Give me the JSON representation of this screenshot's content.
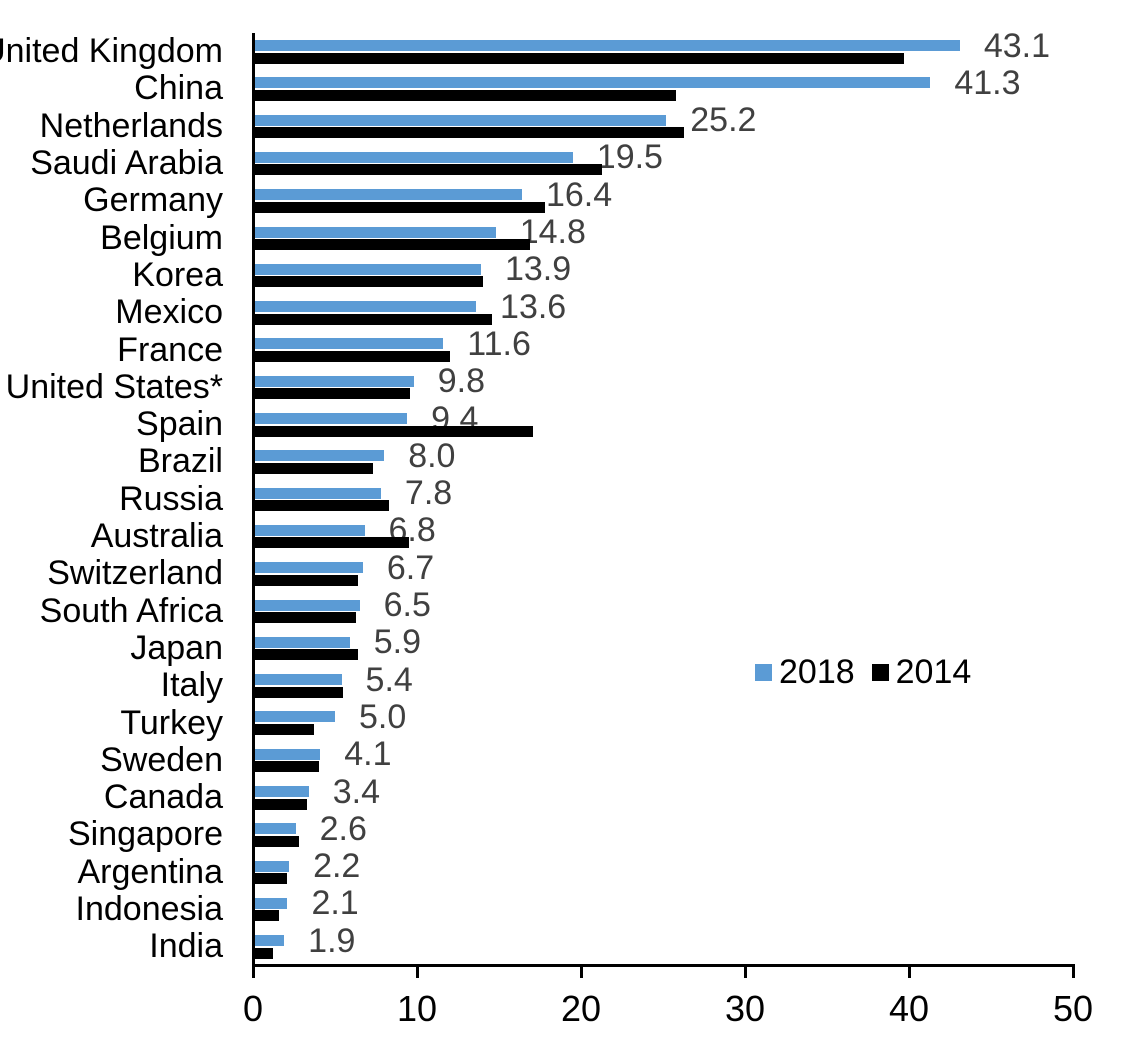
{
  "chart_data": {
    "type": "bar",
    "orientation": "horizontal",
    "title": "",
    "xlabel": "",
    "ylabel": "",
    "xlim": [
      0,
      50
    ],
    "xticks": [
      0,
      10,
      20,
      30,
      40,
      50
    ],
    "grid": false,
    "legend_position": "middle-right",
    "categories": [
      "United Kingdom",
      "China",
      "Netherlands",
      "Saudi Arabia",
      "Germany",
      "Belgium",
      "Korea",
      "Mexico",
      "France",
      "United States*",
      "Spain",
      "Brazil",
      "Russia",
      "Australia",
      "Switzerland",
      "South Africa",
      "Japan",
      "Italy",
      "Turkey",
      "Sweden",
      "Canada",
      "Singapore",
      "Argentina",
      "Indonesia",
      "India"
    ],
    "series": [
      {
        "name": "2018",
        "color": "#5B9BD5",
        "values": [
          43.1,
          41.3,
          25.2,
          19.5,
          16.4,
          14.8,
          13.9,
          13.6,
          11.6,
          9.8,
          9.4,
          8.0,
          7.8,
          6.8,
          6.7,
          6.5,
          5.9,
          5.4,
          5.0,
          4.1,
          3.4,
          2.6,
          2.2,
          2.1,
          1.9
        ]
      },
      {
        "name": "2014",
        "color": "#000000",
        "values": [
          39.7,
          25.8,
          26.3,
          21.3,
          17.8,
          16.9,
          14.0,
          14.6,
          12.0,
          9.6,
          17.1,
          7.3,
          8.3,
          9.5,
          6.4,
          6.3,
          6.4,
          5.5,
          3.7,
          4.0,
          3.3,
          2.8,
          2.1,
          1.6,
          1.2
        ]
      }
    ],
    "data_labels": {
      "series": "2018",
      "format": "one_decimal",
      "color": "#404040",
      "labels": [
        "43.1",
        "41.3",
        "25.2",
        "19.5",
        "16.4",
        "14.8",
        "13.9",
        "13.6",
        "11.6",
        "9.8",
        "9.4",
        "8.0",
        "7.8",
        "6.8",
        "6.7",
        "6.5",
        "5.9",
        "5.4",
        "5.0",
        "4.1",
        "3.4",
        "2.6",
        "2.2",
        "2.1",
        "1.9"
      ]
    }
  },
  "legend": {
    "items": [
      {
        "label": "2018",
        "color": "#5B9BD5"
      },
      {
        "label": "2014",
        "color": "#000000"
      }
    ]
  },
  "axis": {
    "tick_labels": [
      "0",
      "10",
      "20",
      "30",
      "40",
      "50"
    ],
    "color": "#000000"
  },
  "colors": {
    "background": "#FFFFFF",
    "bar_2018": "#5B9BD5",
    "bar_2014": "#000000",
    "data_label": "#404040",
    "axis": "#000000"
  }
}
